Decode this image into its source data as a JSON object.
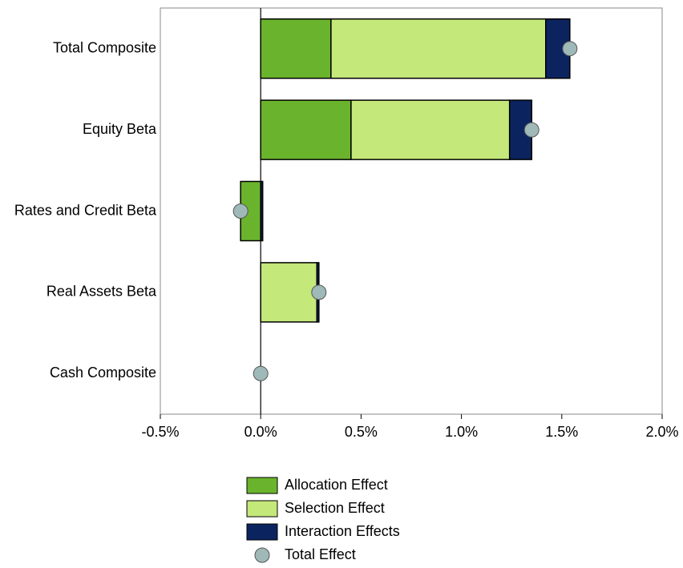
{
  "chart_data": {
    "type": "bar",
    "orientation": "horizontal",
    "stacked": true,
    "categories": [
      "Total Composite",
      "Equity Beta",
      "Rates and Credit Beta",
      "Real Assets Beta",
      "Cash Composite"
    ],
    "series": [
      {
        "name": "Allocation Effect",
        "color": "#6ab42d",
        "values": [
          0.35,
          0.45,
          -0.1,
          0,
          0
        ]
      },
      {
        "name": "Selection Effect",
        "color": "#c4e87a",
        "values": [
          1.07,
          0.79,
          0,
          0.28,
          0
        ]
      },
      {
        "name": "Interaction Effects",
        "color": "#0b2460",
        "values": [
          0.12,
          0.11,
          0.01,
          0.01,
          0
        ]
      },
      {
        "name": "Total Effect",
        "type": "scatter",
        "color": "#9fb8b8",
        "values": [
          1.54,
          1.35,
          -0.1,
          0.29,
          0
        ]
      }
    ],
    "xlim": [
      -0.5,
      2.0
    ],
    "xticks": [
      {
        "value": -0.5,
        "label": "-0.5%"
      },
      {
        "value": 0,
        "label": "0.0%"
      },
      {
        "value": 0.5,
        "label": "0.5%"
      },
      {
        "value": 1.0,
        "label": "1.0%"
      },
      {
        "value": 1.5,
        "label": "1.5%"
      },
      {
        "value": 2.0,
        "label": "2.0%"
      }
    ]
  }
}
